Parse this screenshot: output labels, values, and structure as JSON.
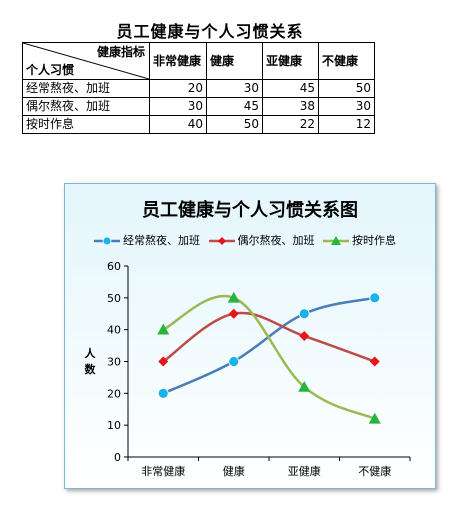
{
  "table": {
    "title": "员工健康与个人习惯关系",
    "corner_top": "健康指标",
    "corner_bottom": "个人习惯",
    "headers": [
      "非常健康",
      "健康",
      "亚健康",
      "不健康"
    ],
    "rows": [
      {
        "label": "经常熬夜、加班",
        "values": [
          "20",
          "30",
          "45",
          "50"
        ]
      },
      {
        "label": "偶尔熬夜、加班",
        "values": [
          "30",
          "45",
          "38",
          "30"
        ]
      },
      {
        "label": "按时作息",
        "values": [
          "40",
          "50",
          "22",
          "12"
        ]
      }
    ]
  },
  "chart_data": {
    "type": "line",
    "title": "员工健康与个人习惯关系图",
    "categories": [
      "非常健康",
      "健康",
      "亚健康",
      "不健康"
    ],
    "ylabel": "人数",
    "xlabel": "",
    "ylim": [
      0,
      60
    ],
    "yticks": [
      "0",
      "10",
      "20",
      "30",
      "40",
      "50",
      "60"
    ],
    "smooth": true,
    "grid": false,
    "legend_position": "top",
    "series": [
      {
        "name": "经常熬夜、加班",
        "values": [
          20,
          30,
          45,
          50
        ],
        "color": "#4a7ebb",
        "marker": "circle",
        "marker_color": "#19b3ec"
      },
      {
        "name": "偶尔熬夜、加班",
        "values": [
          30,
          45,
          38,
          30
        ],
        "color": "#be4b48",
        "marker": "diamond",
        "marker_color": "#e8141b"
      },
      {
        "name": "按时作息",
        "values": [
          40,
          50,
          22,
          12
        ],
        "color": "#98b954",
        "marker": "triangle",
        "marker_color": "#25b53a"
      }
    ]
  }
}
